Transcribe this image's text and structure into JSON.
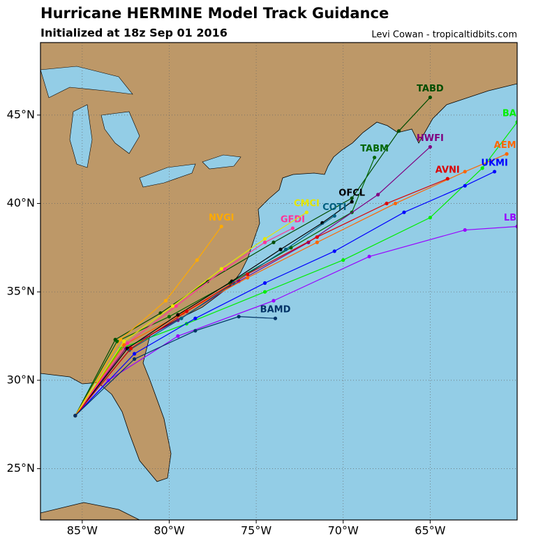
{
  "map": {
    "title": "Hurricane HERMINE Model Track Guidance",
    "subtitle": "Initialized at 18z Sep 01 2016",
    "credit": "Levi Cowan - tropicaltidbits.com",
    "xlim": [
      -87.4,
      -60.0
    ],
    "ylim": [
      22.1,
      49.1
    ],
    "xticks": [
      {
        "value": -85,
        "label": "85°W"
      },
      {
        "value": -80,
        "label": "80°W"
      },
      {
        "value": -75,
        "label": "75°W"
      },
      {
        "value": -70,
        "label": "70°W"
      },
      {
        "value": -65,
        "label": "65°W"
      }
    ],
    "yticks": [
      {
        "value": 25,
        "label": "25°N"
      },
      {
        "value": 30,
        "label": "30°N"
      },
      {
        "value": 35,
        "label": "35°N"
      },
      {
        "value": 40,
        "label": "40°N"
      },
      {
        "value": 45,
        "label": "45°N"
      }
    ],
    "grid": true,
    "tracks": [
      {
        "name": "TABD",
        "color": "#004d00",
        "lon": [
          -85.4,
          -83.1,
          -80.5,
          -77.8,
          -74.0,
          -69.5,
          -66.8,
          -65.0
        ],
        "lat": [
          28.0,
          32.3,
          33.8,
          35.6,
          37.8,
          40.3,
          44.1,
          46.0
        ]
      },
      {
        "name": "TABM",
        "color": "#006600",
        "lon": [
          -85.4,
          -83.0,
          -80.0,
          -76.5,
          -73.0,
          -69.5,
          -68.2
        ],
        "lat": [
          28.0,
          32.2,
          33.6,
          35.5,
          37.5,
          39.5,
          42.6
        ]
      },
      {
        "name": "HWFI",
        "color": "#800080",
        "lon": [
          -85.4,
          -82.5,
          -79.5,
          -76.0,
          -72.0,
          -68.0,
          -65.0
        ],
        "lat": [
          28.0,
          31.8,
          33.4,
          35.6,
          37.8,
          40.5,
          43.2
        ]
      },
      {
        "name": "BAMS",
        "color": "#00ee00",
        "lon": [
          -85.4,
          -82.8,
          -79.0,
          -74.5,
          -70.0,
          -65.0,
          -62.0,
          -60.0
        ],
        "lat": [
          28.0,
          31.8,
          33.2,
          35.0,
          36.8,
          39.2,
          42.0,
          44.6
        ]
      },
      {
        "name": "AEMI",
        "color": "#ff6600",
        "lon": [
          -85.4,
          -82.6,
          -79.2,
          -75.5,
          -71.5,
          -67.0,
          -63.0,
          -60.6
        ],
        "lat": [
          28.0,
          32.0,
          33.8,
          35.8,
          37.8,
          40.0,
          41.8,
          42.8
        ]
      },
      {
        "name": "LBAR",
        "color": "#9900ff",
        "lon": [
          -85.4,
          -83.5,
          -79.5,
          -74.0,
          -68.5,
          -63.0,
          -60.0
        ],
        "lat": [
          28.0,
          30.0,
          32.5,
          34.5,
          37.0,
          38.5,
          38.7
        ]
      },
      {
        "name": "UKMI",
        "color": "#0000ff",
        "lon": [
          -85.4,
          -82.0,
          -78.5,
          -74.5,
          -70.5,
          -66.5,
          -63.0,
          -61.3
        ],
        "lat": [
          28.0,
          31.5,
          33.5,
          35.5,
          37.3,
          39.5,
          41.0,
          41.8
        ]
      },
      {
        "name": "OFCL",
        "color": "#000000",
        "lon": [
          -85.4,
          -82.4,
          -79.5,
          -76.4,
          -73.6,
          -71.2,
          -69.5
        ],
        "lat": [
          28.0,
          31.8,
          33.7,
          35.6,
          37.4,
          38.9,
          40.1
        ]
      },
      {
        "name": "COTI",
        "color": "#006080",
        "lon": [
          -85.4,
          -82.3,
          -79.3,
          -76.3,
          -73.3,
          -70.5
        ],
        "lat": [
          28.0,
          31.7,
          33.5,
          35.5,
          37.4,
          39.3
        ]
      },
      {
        "name": "GFDI",
        "color": "#ff3399",
        "lon": [
          -85.4,
          -82.4,
          -79.6,
          -76.8,
          -74.5,
          -72.9
        ],
        "lat": [
          28.0,
          32.1,
          34.2,
          36.3,
          37.8,
          38.6
        ]
      },
      {
        "name": "NVGI",
        "color": "#ffaa00",
        "lon": [
          -85.4,
          -82.8,
          -80.2,
          -78.4,
          -77.0
        ],
        "lat": [
          28.0,
          32.3,
          34.5,
          36.8,
          38.7
        ]
      },
      {
        "name": "CMCI",
        "color": "#e6e600",
        "lon": [
          -85.4,
          -82.6,
          -79.8,
          -77.0,
          -74.5,
          -72.1
        ],
        "lat": [
          28.0,
          32.2,
          34.2,
          36.3,
          38.0,
          39.5
        ]
      },
      {
        "name": "AVNI",
        "color": "#dd0000",
        "lon": [
          -85.4,
          -82.2,
          -79.0,
          -75.5,
          -71.5,
          -67.5,
          -64.0
        ],
        "lat": [
          28.0,
          31.8,
          33.9,
          36.0,
          38.1,
          40.0,
          41.4
        ]
      },
      {
        "name": "BAMD",
        "color": "#003366",
        "lon": [
          -85.4,
          -82.0,
          -78.5,
          -76.0,
          -73.9
        ],
        "lat": [
          28.0,
          31.2,
          32.8,
          33.6,
          33.5
        ]
      }
    ]
  }
}
